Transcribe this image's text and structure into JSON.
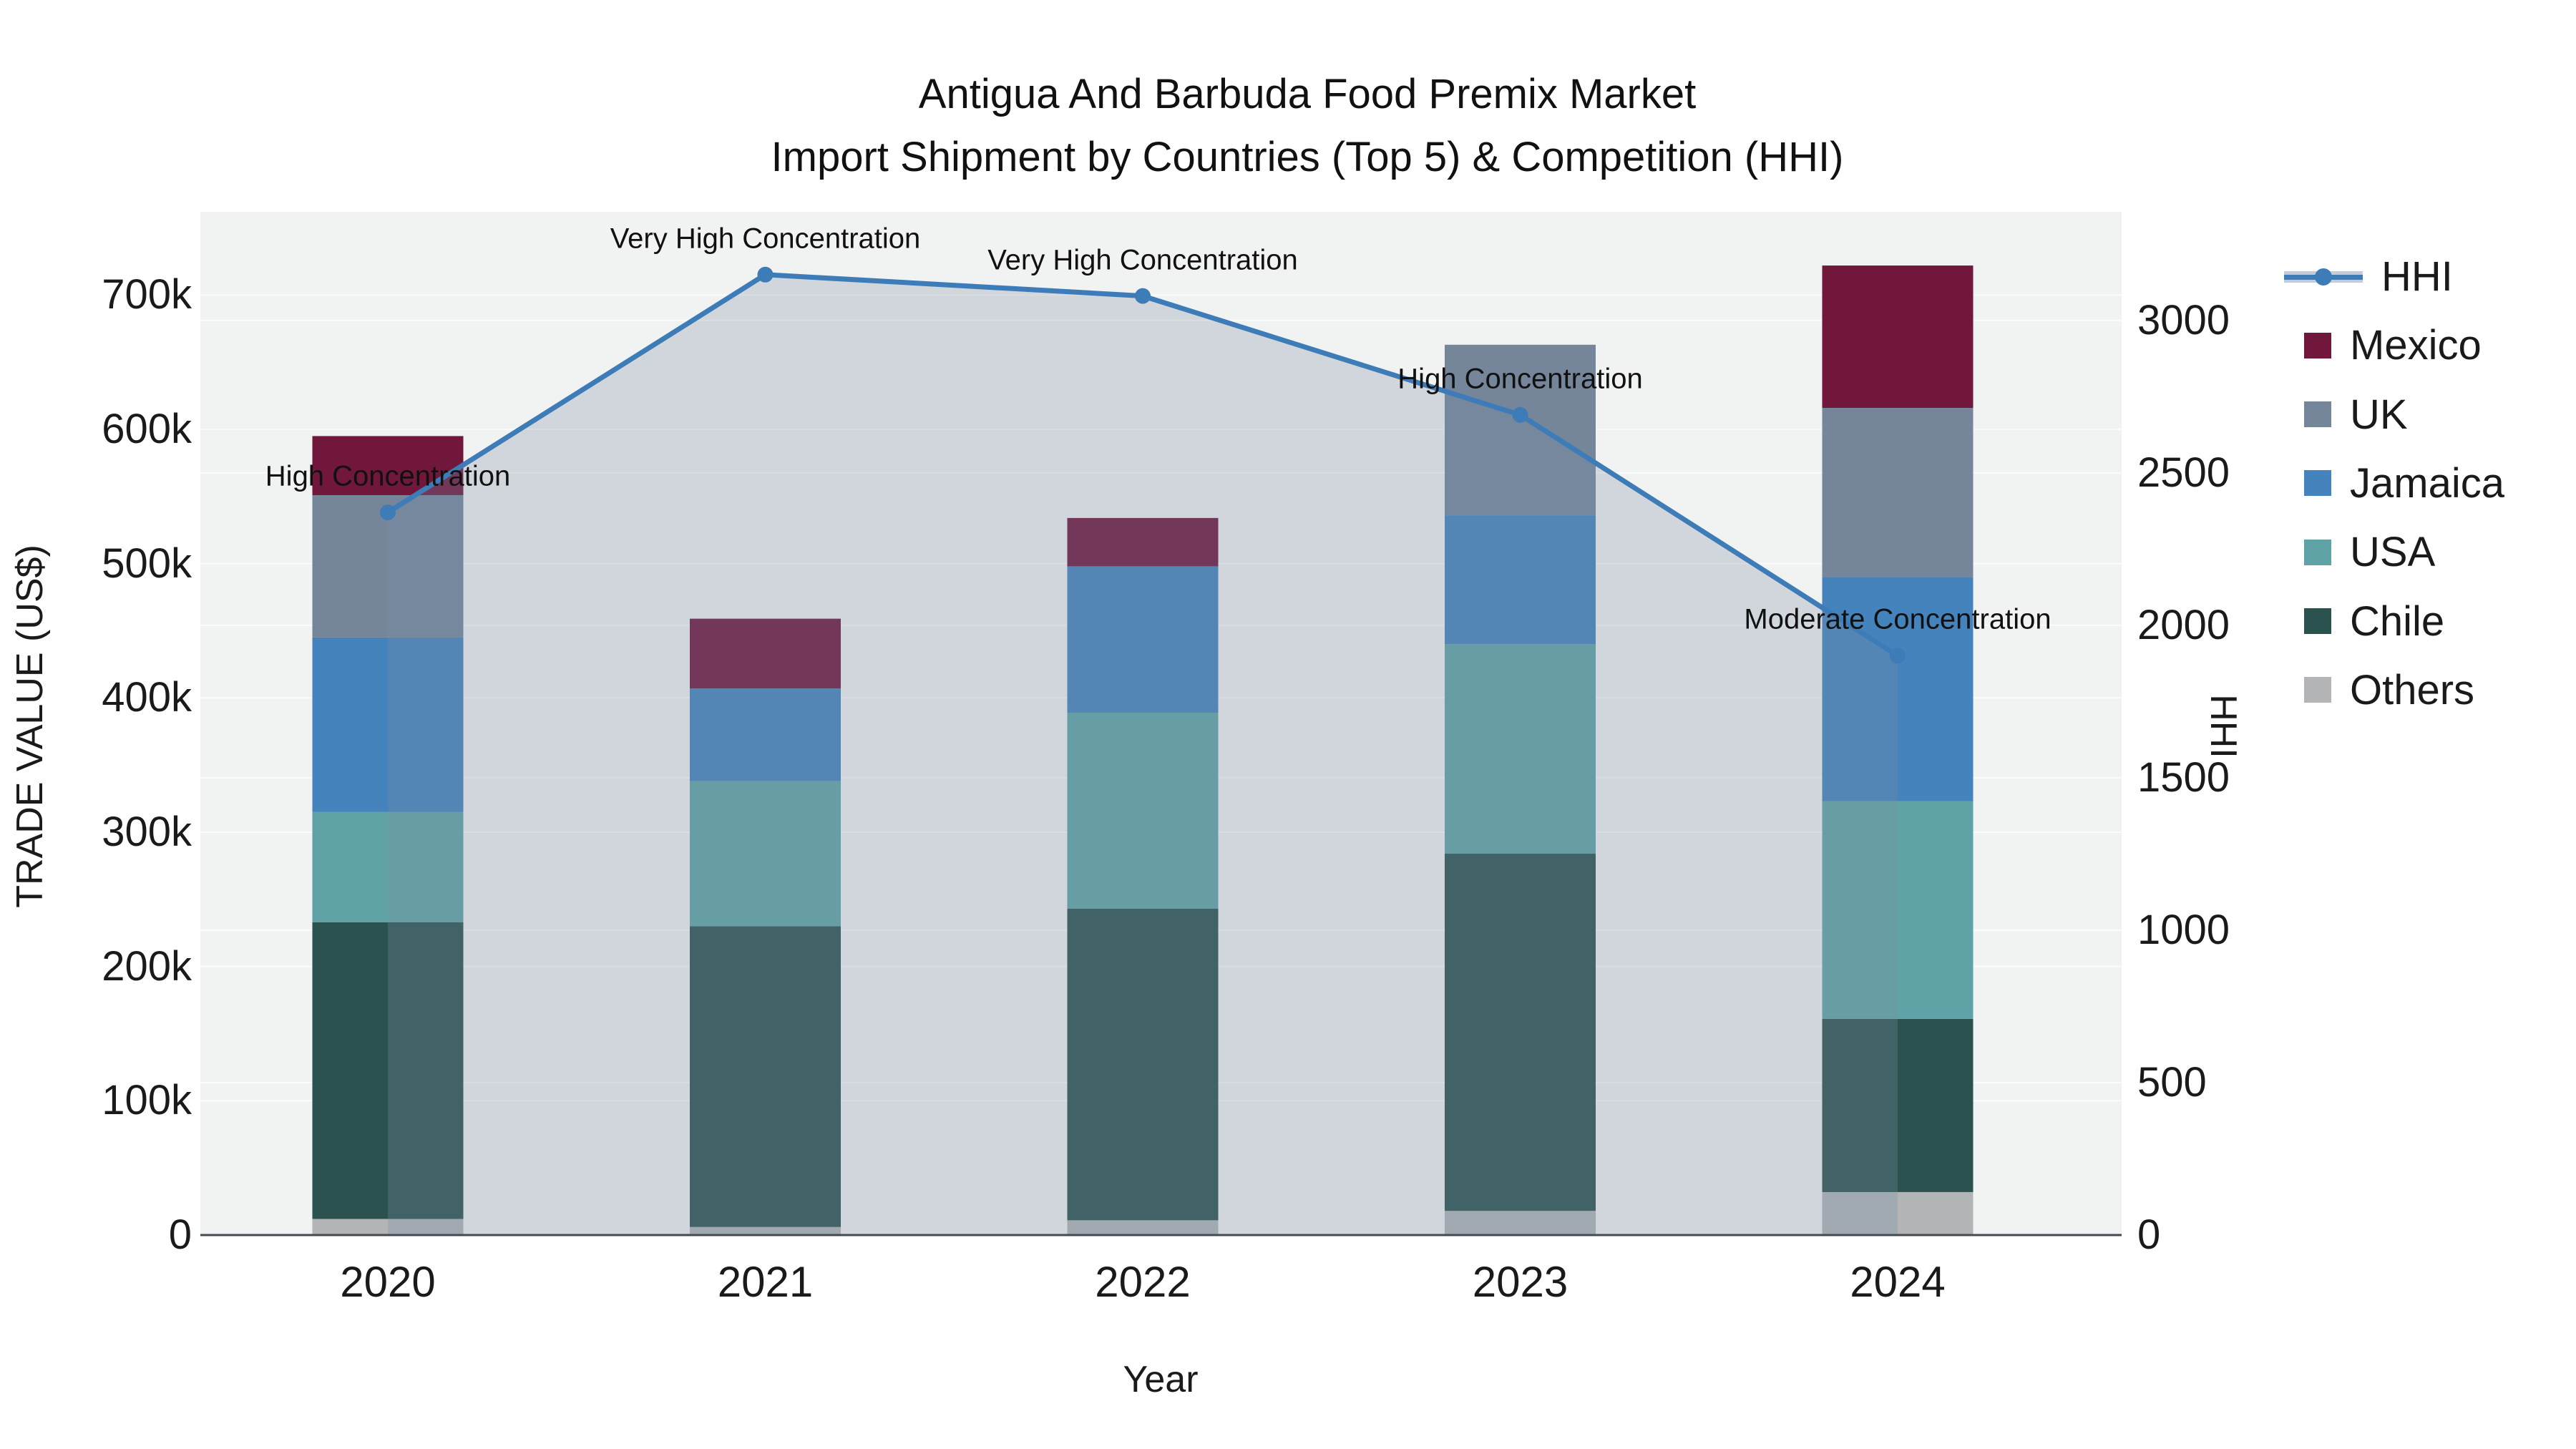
{
  "title": {
    "line1": "Antigua And Barbuda Food Premix Market",
    "line2": "Import Shipment by Countries (Top 5) & Competition (HHI)"
  },
  "axes": {
    "x": {
      "title": "Year",
      "categories": [
        "2020",
        "2021",
        "2022",
        "2023",
        "2024"
      ]
    },
    "y_left": {
      "title": "TRADE VALUE (US$)",
      "tick_labels": [
        "0",
        "100k",
        "200k",
        "300k",
        "400k",
        "500k",
        "600k",
        "700k"
      ],
      "tick_values": [
        0,
        100000,
        200000,
        300000,
        400000,
        500000,
        600000,
        700000
      ],
      "max": 762000
    },
    "y_right": {
      "title": "HHI",
      "tick_labels": [
        "0",
        "500",
        "1000",
        "1500",
        "2000",
        "2500",
        "3000"
      ],
      "tick_values": [
        0,
        500,
        1000,
        1500,
        2000,
        2500,
        3000
      ],
      "max": 3356
    }
  },
  "legend": [
    {
      "label": "HHI",
      "type": "line",
      "color": "#3e7cb8"
    },
    {
      "label": "Mexico",
      "type": "square",
      "color": "#71173C"
    },
    {
      "label": "UK",
      "type": "square",
      "color": "#75869A"
    },
    {
      "label": "Jamaica",
      "type": "square",
      "color": "#4483BC"
    },
    {
      "label": "USA",
      "type": "square",
      "color": "#60A3A6"
    },
    {
      "label": "Chile",
      "type": "square",
      "color": "#2C5250"
    },
    {
      "label": "Others",
      "type": "square",
      "color": "#B2B4B6"
    }
  ],
  "chart_data": {
    "type": "bar+line",
    "title": "Antigua And Barbuda Food Premix Market — Import Shipment by Countries (Top 5) & Competition (HHI)",
    "categories": [
      "2020",
      "2021",
      "2022",
      "2023",
      "2024"
    ],
    "stack_order_bottom_to_top": [
      "Others",
      "Chile",
      "USA",
      "Jamaica",
      "UK",
      "Mexico"
    ],
    "series": [
      {
        "name": "Mexico",
        "color": "#71173C",
        "values": [
          44000,
          52000,
          36000,
          0,
          106000
        ]
      },
      {
        "name": "UK",
        "color": "#75869A",
        "values": [
          106000,
          0,
          0,
          127000,
          126000
        ]
      },
      {
        "name": "Jamaica",
        "color": "#4483BC",
        "values": [
          130000,
          69000,
          109000,
          96000,
          167000
        ]
      },
      {
        "name": "USA",
        "color": "#60A3A6",
        "values": [
          82000,
          108000,
          146000,
          156000,
          162000
        ]
      },
      {
        "name": "Chile",
        "color": "#2C5250",
        "values": [
          221000,
          224000,
          232000,
          266000,
          129000
        ]
      },
      {
        "name": "Others",
        "color": "#B2B4B6",
        "values": [
          12000,
          6000,
          11000,
          18000,
          32000
        ]
      }
    ],
    "bar_totals": [
      595000,
      459000,
      534000,
      663000,
      722000
    ],
    "line_series": {
      "name": "HHI",
      "color": "#3e7cb8",
      "area_fill": "rgba(122,142,166,0.28)",
      "values": [
        2370,
        3150,
        3080,
        2690,
        1900
      ]
    },
    "annotations": [
      "High Concentration",
      "Very High Concentration",
      "Very High Concentration",
      "High Concentration",
      "Moderate Concentration"
    ],
    "xlabel": "Year",
    "ylabel_left": "TRADE VALUE (US$)",
    "ylabel_right": "HHI",
    "ylim_left": [
      0,
      762000
    ],
    "ylim_right": [
      0,
      3356
    ],
    "grid": true,
    "legend_position": "right"
  },
  "colors": {
    "plot_background": "#f1f2f2",
    "gridline": "#fbfbfb",
    "axis_line": "#444a4f",
    "text": "#1a1a1a"
  }
}
